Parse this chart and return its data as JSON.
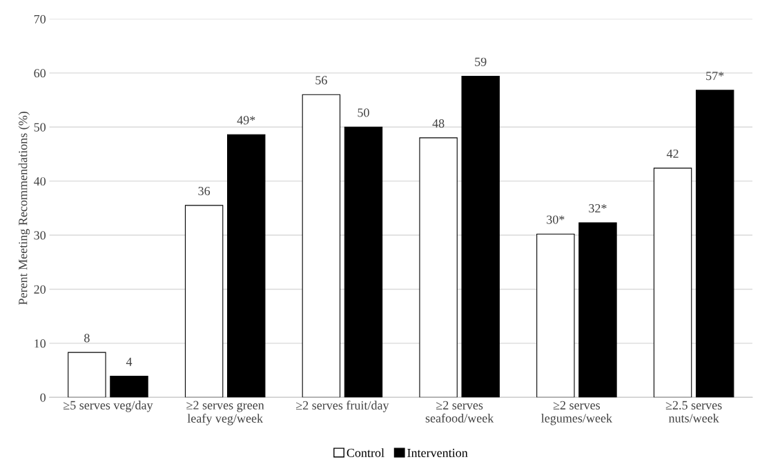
{
  "chart_data": {
    "type": "bar",
    "ylabel": "Perent Meeting Recommendations (%)",
    "categories": [
      "≥5 serves veg/day",
      "≥2 serves green\nleafy veg/week",
      "≥2 serves fruit/day",
      "≥2 serves\nseafood/week",
      "≥2 serves\nlegumes/week",
      "≥2.5 serves\nnuts/week"
    ],
    "series": [
      {
        "name": "Control",
        "color": "#ffffff",
        "values": [
          8.3,
          35.5,
          56.0,
          48.0,
          30.2,
          42.4
        ],
        "value_labels": [
          "8",
          "36",
          "56",
          "48",
          "30*",
          "42"
        ]
      },
      {
        "name": "Intervention",
        "color": "#000000",
        "values": [
          3.9,
          48.6,
          50.0,
          59.4,
          32.3,
          56.8
        ],
        "value_labels": [
          "4",
          "49*",
          "50",
          "59",
          "32*",
          "57*"
        ]
      }
    ],
    "ylim": [
      0,
      70
    ],
    "yticks": [
      0,
      10,
      20,
      30,
      40,
      50,
      60,
      70
    ],
    "grid": "y",
    "legend": "bottom"
  }
}
